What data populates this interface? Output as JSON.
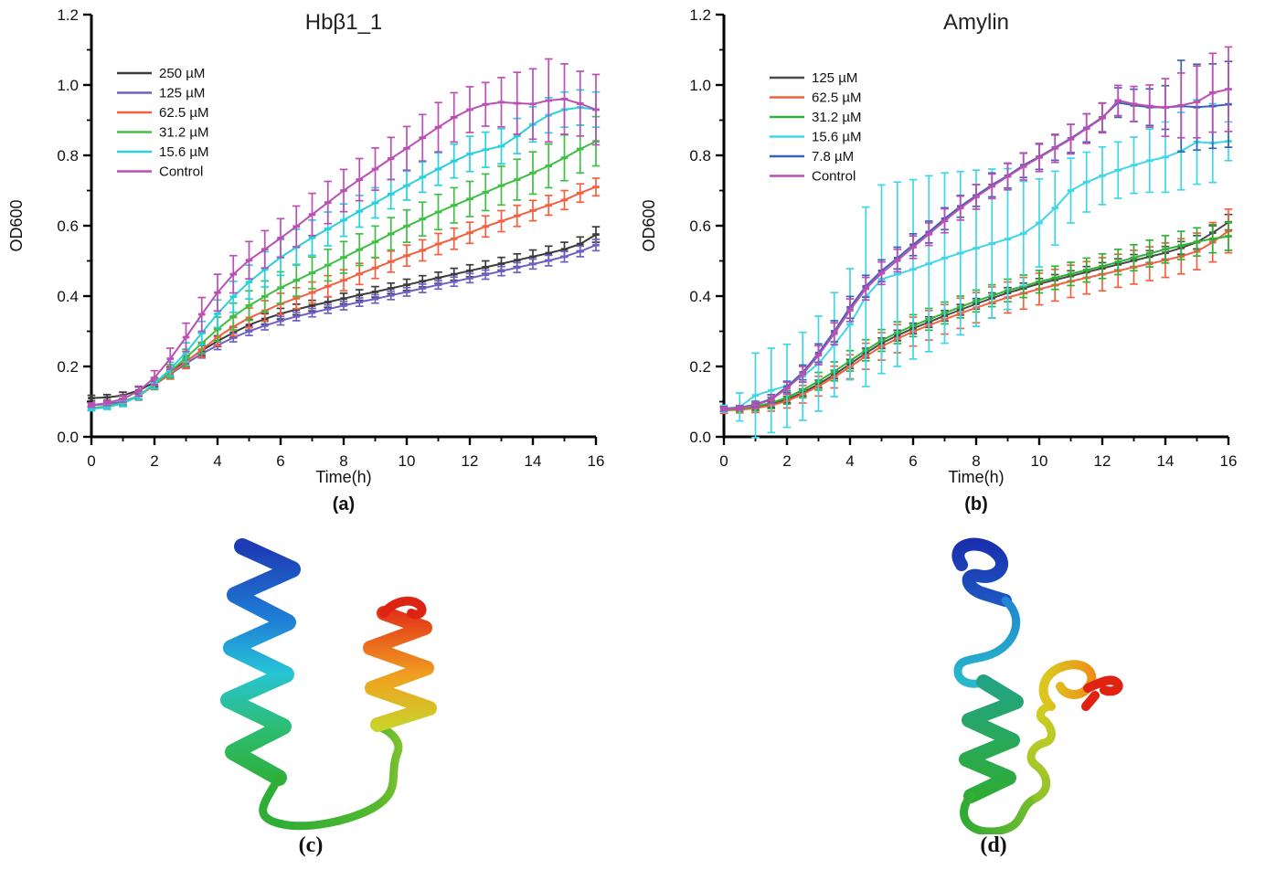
{
  "figure": {
    "background": "#ffffff",
    "axis_color": "#000000"
  },
  "chart_data": [
    {
      "type": "line",
      "panel_label": "(a)",
      "title": "Hbβ1_1",
      "xlabel": "Time(h)",
      "ylabel": "OD600",
      "xlim": [
        0,
        16
      ],
      "ylim": [
        0.0,
        1.2
      ],
      "x_major_ticks": [
        0,
        2,
        4,
        6,
        8,
        10,
        12,
        14,
        16
      ],
      "x_minor_ticks": [
        1,
        3,
        5,
        7,
        9,
        11,
        13,
        15
      ],
      "y_major_ticks": [
        0.0,
        0.2,
        0.4,
        0.6,
        0.8,
        1.0,
        1.2
      ],
      "y_minor_ticks": [
        0.1,
        0.3,
        0.5,
        0.7,
        0.9,
        1.1
      ],
      "grid": false,
      "error_bars": true,
      "legend_position": "top-left",
      "x": [
        0,
        0.5,
        1,
        1.5,
        2,
        2.5,
        3,
        3.5,
        4,
        4.5,
        5,
        5.5,
        6,
        6.5,
        7,
        7.5,
        8,
        8.5,
        9,
        9.5,
        10,
        10.5,
        11,
        11.5,
        12,
        12.5,
        13,
        13.5,
        14,
        14.5,
        15,
        15.5,
        16
      ],
      "series": [
        {
          "name": "250 µM",
          "color": "#3b3b3b",
          "values": [
            0.11,
            0.112,
            0.118,
            0.132,
            0.155,
            0.185,
            0.215,
            0.245,
            0.272,
            0.296,
            0.318,
            0.335,
            0.35,
            0.362,
            0.373,
            0.383,
            0.393,
            0.403,
            0.412,
            0.422,
            0.432,
            0.442,
            0.452,
            0.462,
            0.472,
            0.482,
            0.492,
            0.502,
            0.512,
            0.522,
            0.533,
            0.548,
            0.575
          ],
          "errors": [
            0.008,
            0.008,
            0.009,
            0.01,
            0.012,
            0.014,
            0.015,
            0.015,
            0.015,
            0.015,
            0.015,
            0.015,
            0.015,
            0.015,
            0.015,
            0.015,
            0.015,
            0.015,
            0.015,
            0.015,
            0.016,
            0.016,
            0.016,
            0.017,
            0.017,
            0.018,
            0.018,
            0.018,
            0.019,
            0.02,
            0.02,
            0.02,
            0.022
          ]
        },
        {
          "name": "125 µM",
          "color": "#6f5fc4",
          "values": [
            0.09,
            0.093,
            0.1,
            0.116,
            0.148,
            0.178,
            0.208,
            0.236,
            0.26,
            0.282,
            0.3,
            0.316,
            0.33,
            0.342,
            0.353,
            0.363,
            0.373,
            0.383,
            0.392,
            0.402,
            0.412,
            0.422,
            0.432,
            0.441,
            0.451,
            0.461,
            0.471,
            0.481,
            0.491,
            0.501,
            0.512,
            0.527,
            0.545
          ],
          "errors": [
            0.006,
            0.006,
            0.008,
            0.009,
            0.01,
            0.011,
            0.012,
            0.012,
            0.012,
            0.012,
            0.012,
            0.012,
            0.012,
            0.012,
            0.012,
            0.012,
            0.012,
            0.012,
            0.012,
            0.012,
            0.012,
            0.012,
            0.012,
            0.013,
            0.013,
            0.013,
            0.013,
            0.014,
            0.014,
            0.015,
            0.015,
            0.015,
            0.016
          ]
        },
        {
          "name": "62.5 µM",
          "color": "#f4603f",
          "values": [
            0.082,
            0.086,
            0.096,
            0.115,
            0.148,
            0.18,
            0.213,
            0.248,
            0.283,
            0.313,
            0.338,
            0.358,
            0.378,
            0.394,
            0.41,
            0.428,
            0.445,
            0.463,
            0.48,
            0.498,
            0.515,
            0.53,
            0.548,
            0.563,
            0.58,
            0.598,
            0.613,
            0.628,
            0.643,
            0.658,
            0.673,
            0.693,
            0.71
          ],
          "errors": [
            0.006,
            0.007,
            0.009,
            0.011,
            0.014,
            0.016,
            0.019,
            0.021,
            0.024,
            0.026,
            0.028,
            0.029,
            0.03,
            0.03,
            0.03,
            0.03,
            0.03,
            0.03,
            0.03,
            0.03,
            0.03,
            0.03,
            0.03,
            0.03,
            0.03,
            0.03,
            0.03,
            0.03,
            0.029,
            0.028,
            0.027,
            0.026,
            0.025
          ]
        },
        {
          "name": "31.2 µM",
          "color": "#3fbf46",
          "values": [
            0.082,
            0.086,
            0.097,
            0.117,
            0.15,
            0.186,
            0.225,
            0.266,
            0.306,
            0.342,
            0.373,
            0.399,
            0.424,
            0.445,
            0.466,
            0.488,
            0.51,
            0.532,
            0.554,
            0.577,
            0.599,
            0.619,
            0.639,
            0.658,
            0.676,
            0.695,
            0.714,
            0.731,
            0.75,
            0.77,
            0.793,
            0.818,
            0.84
          ],
          "errors": [
            0.006,
            0.007,
            0.009,
            0.011,
            0.015,
            0.019,
            0.024,
            0.029,
            0.034,
            0.038,
            0.042,
            0.044,
            0.045,
            0.045,
            0.045,
            0.045,
            0.045,
            0.045,
            0.045,
            0.046,
            0.046,
            0.048,
            0.05,
            0.05,
            0.05,
            0.052,
            0.055,
            0.058,
            0.06,
            0.062,
            0.065,
            0.068,
            0.07
          ]
        },
        {
          "name": "15.6 µM",
          "color": "#29cfdd",
          "values": [
            0.08,
            0.084,
            0.095,
            0.116,
            0.152,
            0.192,
            0.24,
            0.295,
            0.35,
            0.398,
            0.44,
            0.476,
            0.51,
            0.539,
            0.566,
            0.591,
            0.616,
            0.641,
            0.665,
            0.69,
            0.714,
            0.738,
            0.761,
            0.784,
            0.804,
            0.816,
            0.826,
            0.855,
            0.888,
            0.914,
            0.93,
            0.936,
            0.93
          ],
          "errors": [
            0.006,
            0.006,
            0.009,
            0.011,
            0.015,
            0.02,
            0.027,
            0.033,
            0.039,
            0.044,
            0.048,
            0.05,
            0.051,
            0.051,
            0.05,
            0.048,
            0.046,
            0.045,
            0.043,
            0.042,
            0.041,
            0.043,
            0.046,
            0.048,
            0.05,
            0.05,
            0.05,
            0.05,
            0.05,
            0.05,
            0.05,
            0.05,
            0.05
          ]
        },
        {
          "name": "Control",
          "color": "#bb4fb3",
          "values": [
            0.09,
            0.096,
            0.108,
            0.13,
            0.168,
            0.222,
            0.283,
            0.348,
            0.41,
            0.462,
            0.502,
            0.533,
            0.565,
            0.598,
            0.632,
            0.666,
            0.7,
            0.731,
            0.761,
            0.791,
            0.82,
            0.85,
            0.88,
            0.908,
            0.93,
            0.945,
            0.951,
            0.948,
            0.946,
            0.956,
            0.96,
            0.947,
            0.93
          ],
          "errors": [
            0.006,
            0.007,
            0.01,
            0.014,
            0.02,
            0.03,
            0.04,
            0.048,
            0.052,
            0.053,
            0.053,
            0.053,
            0.055,
            0.058,
            0.06,
            0.06,
            0.06,
            0.06,
            0.06,
            0.06,
            0.062,
            0.066,
            0.07,
            0.07,
            0.065,
            0.062,
            0.07,
            0.088,
            0.1,
            0.118,
            0.1,
            0.092,
            0.1
          ]
        }
      ]
    },
    {
      "type": "line",
      "panel_label": "(b)",
      "title": "Amylin",
      "xlabel": "Time(h)",
      "ylabel": "OD600",
      "xlim": [
        0,
        16
      ],
      "ylim": [
        0.0,
        1.2
      ],
      "x_major_ticks": [
        0,
        2,
        4,
        6,
        8,
        10,
        12,
        14,
        16
      ],
      "x_minor_ticks": [
        1,
        3,
        5,
        7,
        9,
        11,
        13,
        15
      ],
      "y_major_ticks": [
        0.0,
        0.2,
        0.4,
        0.6,
        0.8,
        1.0,
        1.2
      ],
      "y_minor_ticks": [
        0.1,
        0.3,
        0.5,
        0.7,
        0.9,
        1.1
      ],
      "grid": false,
      "error_bars": true,
      "legend_position": "top-left",
      "x": [
        0,
        0.5,
        1,
        1.5,
        2,
        2.5,
        3,
        3.5,
        4,
        4.5,
        5,
        5.5,
        6,
        6.5,
        7,
        7.5,
        8,
        8.5,
        9,
        9.5,
        10,
        10.5,
        11,
        11.5,
        12,
        12.5,
        13,
        13.5,
        14,
        14.5,
        15,
        15.5,
        16
      ],
      "series": [
        {
          "name": "125 µM",
          "color": "#4a4a4a",
          "values": [
            0.076,
            0.078,
            0.083,
            0.092,
            0.106,
            0.126,
            0.15,
            0.177,
            0.207,
            0.238,
            0.266,
            0.288,
            0.308,
            0.326,
            0.344,
            0.361,
            0.378,
            0.394,
            0.409,
            0.422,
            0.435,
            0.446,
            0.457,
            0.468,
            0.479,
            0.49,
            0.501,
            0.512,
            0.523,
            0.537,
            0.553,
            0.58,
            0.61
          ],
          "errors": [
            0.006,
            0.006,
            0.007,
            0.008,
            0.009,
            0.01,
            0.011,
            0.012,
            0.013,
            0.014,
            0.015,
            0.015,
            0.015,
            0.015,
            0.015,
            0.015,
            0.015,
            0.015,
            0.015,
            0.015,
            0.015,
            0.015,
            0.015,
            0.016,
            0.016,
            0.016,
            0.017,
            0.017,
            0.018,
            0.018,
            0.019,
            0.02,
            0.022
          ]
        },
        {
          "name": "62.5 µM",
          "color": "#f4603f",
          "values": [
            0.075,
            0.077,
            0.081,
            0.089,
            0.102,
            0.121,
            0.144,
            0.17,
            0.199,
            0.229,
            0.257,
            0.279,
            0.299,
            0.317,
            0.334,
            0.351,
            0.367,
            0.382,
            0.396,
            0.408,
            0.42,
            0.431,
            0.442,
            0.452,
            0.462,
            0.472,
            0.482,
            0.492,
            0.502,
            0.513,
            0.527,
            0.553,
            0.585
          ],
          "errors": [
            0.008,
            0.009,
            0.012,
            0.016,
            0.02,
            0.025,
            0.028,
            0.031,
            0.034,
            0.037,
            0.039,
            0.04,
            0.041,
            0.042,
            0.042,
            0.043,
            0.043,
            0.044,
            0.044,
            0.045,
            0.045,
            0.045,
            0.046,
            0.046,
            0.047,
            0.047,
            0.048,
            0.048,
            0.049,
            0.05,
            0.052,
            0.056,
            0.062
          ]
        },
        {
          "name": "31.2 µM",
          "color": "#2eb335",
          "values": [
            0.077,
            0.08,
            0.086,
            0.096,
            0.112,
            0.133,
            0.158,
            0.186,
            0.216,
            0.246,
            0.274,
            0.296,
            0.316,
            0.334,
            0.352,
            0.369,
            0.386,
            0.401,
            0.416,
            0.428,
            0.441,
            0.452,
            0.463,
            0.474,
            0.485,
            0.497,
            0.509,
            0.521,
            0.533,
            0.544,
            0.554,
            0.563,
            0.57
          ],
          "errors": [
            0.006,
            0.008,
            0.012,
            0.016,
            0.019,
            0.022,
            0.025,
            0.027,
            0.029,
            0.03,
            0.031,
            0.031,
            0.031,
            0.031,
            0.031,
            0.031,
            0.031,
            0.031,
            0.032,
            0.032,
            0.032,
            0.033,
            0.033,
            0.034,
            0.035,
            0.036,
            0.037,
            0.038,
            0.039,
            0.04,
            0.04,
            0.04,
            0.04
          ]
        },
        {
          "name": "15.6 µM",
          "color": "#3fd6e8",
          "values": [
            0.08,
            0.085,
            0.118,
            0.132,
            0.145,
            0.172,
            0.208,
            0.262,
            0.32,
            0.398,
            0.448,
            0.462,
            0.476,
            0.492,
            0.508,
            0.522,
            0.536,
            0.549,
            0.562,
            0.578,
            0.608,
            0.65,
            0.7,
            0.724,
            0.742,
            0.758,
            0.772,
            0.785,
            0.795,
            0.812,
            0.838,
            0.835,
            0.84
          ],
          "errors": [
            0.01,
            0.04,
            0.12,
            0.12,
            0.118,
            0.125,
            0.135,
            0.148,
            0.158,
            0.255,
            0.268,
            0.262,
            0.255,
            0.25,
            0.242,
            0.232,
            0.222,
            0.212,
            0.2,
            0.148,
            0.125,
            0.105,
            0.092,
            0.085,
            0.082,
            0.08,
            0.08,
            0.09,
            0.1,
            0.11,
            0.12,
            0.112,
            0.055
          ]
        },
        {
          "name": "7.8 µM",
          "color": "#3a63b8",
          "values": [
            0.08,
            0.083,
            0.092,
            0.108,
            0.142,
            0.183,
            0.238,
            0.3,
            0.368,
            0.428,
            0.472,
            0.508,
            0.546,
            0.582,
            0.62,
            0.655,
            0.686,
            0.716,
            0.742,
            0.772,
            0.796,
            0.822,
            0.848,
            0.878,
            0.908,
            0.95,
            0.942,
            0.937,
            0.936,
            0.94,
            0.937,
            0.94,
            0.945
          ],
          "errors": [
            0.006,
            0.006,
            0.009,
            0.012,
            0.016,
            0.021,
            0.026,
            0.03,
            0.031,
            0.031,
            0.031,
            0.031,
            0.031,
            0.031,
            0.031,
            0.031,
            0.031,
            0.034,
            0.035,
            0.035,
            0.036,
            0.036,
            0.04,
            0.04,
            0.041,
            0.042,
            0.046,
            0.052,
            0.062,
            0.13,
            0.122,
            0.12,
            0.122
          ]
        },
        {
          "name": "Control",
          "color": "#bb4fb3",
          "values": [
            0.079,
            0.082,
            0.09,
            0.106,
            0.138,
            0.178,
            0.232,
            0.293,
            0.36,
            0.421,
            0.465,
            0.501,
            0.539,
            0.576,
            0.614,
            0.65,
            0.682,
            0.712,
            0.74,
            0.768,
            0.794,
            0.82,
            0.846,
            0.876,
            0.906,
            0.956,
            0.946,
            0.94,
            0.936,
            0.942,
            0.952,
            0.978,
            0.988
          ],
          "errors": [
            0.006,
            0.006,
            0.009,
            0.012,
            0.017,
            0.022,
            0.027,
            0.031,
            0.032,
            0.032,
            0.032,
            0.032,
            0.032,
            0.032,
            0.034,
            0.034,
            0.035,
            0.035,
            0.038,
            0.038,
            0.04,
            0.04,
            0.042,
            0.042,
            0.042,
            0.043,
            0.05,
            0.06,
            0.082,
            0.092,
            0.102,
            0.112,
            0.12
          ]
        }
      ]
    }
  ],
  "proteins": {
    "c": {
      "label": "(c)",
      "type": "ribbon-structure",
      "spectrum": [
        "#1d3bb4",
        "#1f7ed6",
        "#27c4d7",
        "#2dbd72",
        "#2eae36",
        "#c8d42a",
        "#f0a020",
        "#e33118"
      ]
    },
    "d": {
      "label": "(d)",
      "type": "ribbon-structure",
      "spectrum": [
        "#1a2fae",
        "#1e5fc6",
        "#27b9cb",
        "#23a383",
        "#2eac33",
        "#d3cd22",
        "#ef8e17",
        "#df2212"
      ]
    }
  }
}
